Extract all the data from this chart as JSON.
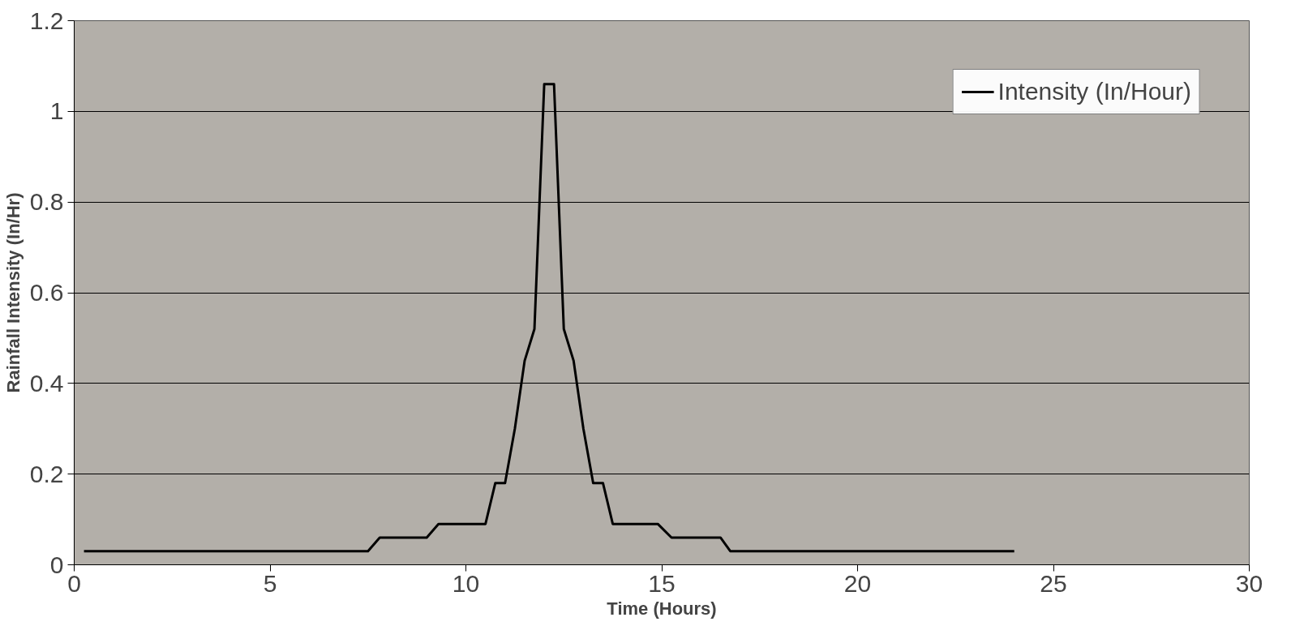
{
  "chart_data": {
    "type": "line",
    "xlabel": "Time (Hours)",
    "ylabel": "Rainfall Intensity (In/Hr)",
    "x": [
      0.25,
      7.5,
      7.8,
      9.0,
      9.3,
      10.5,
      10.75,
      11.0,
      11.25,
      11.5,
      11.75,
      12.0,
      12.25,
      12.5,
      12.75,
      13.0,
      13.25,
      13.5,
      13.75,
      14.9,
      15.25,
      16.5,
      16.75,
      24.0
    ],
    "series": [
      {
        "name": "Intensity (In/Hour)",
        "color": "#000000",
        "values": [
          0.03,
          0.03,
          0.06,
          0.06,
          0.09,
          0.09,
          0.18,
          0.18,
          0.3,
          0.45,
          0.52,
          1.06,
          1.06,
          0.52,
          0.45,
          0.3,
          0.18,
          0.18,
          0.09,
          0.09,
          0.06,
          0.06,
          0.03,
          0.03
        ]
      }
    ],
    "xlim": [
      0,
      30
    ],
    "xticks": [
      0,
      5,
      10,
      15,
      20,
      25,
      30
    ],
    "ylim": [
      0,
      1.2
    ],
    "yticks": [
      0,
      0.2,
      0.4,
      0.6,
      0.8,
      1,
      1.2
    ],
    "grid": "y",
    "legend": "top right",
    "marker": "none",
    "line_style": "solid"
  }
}
